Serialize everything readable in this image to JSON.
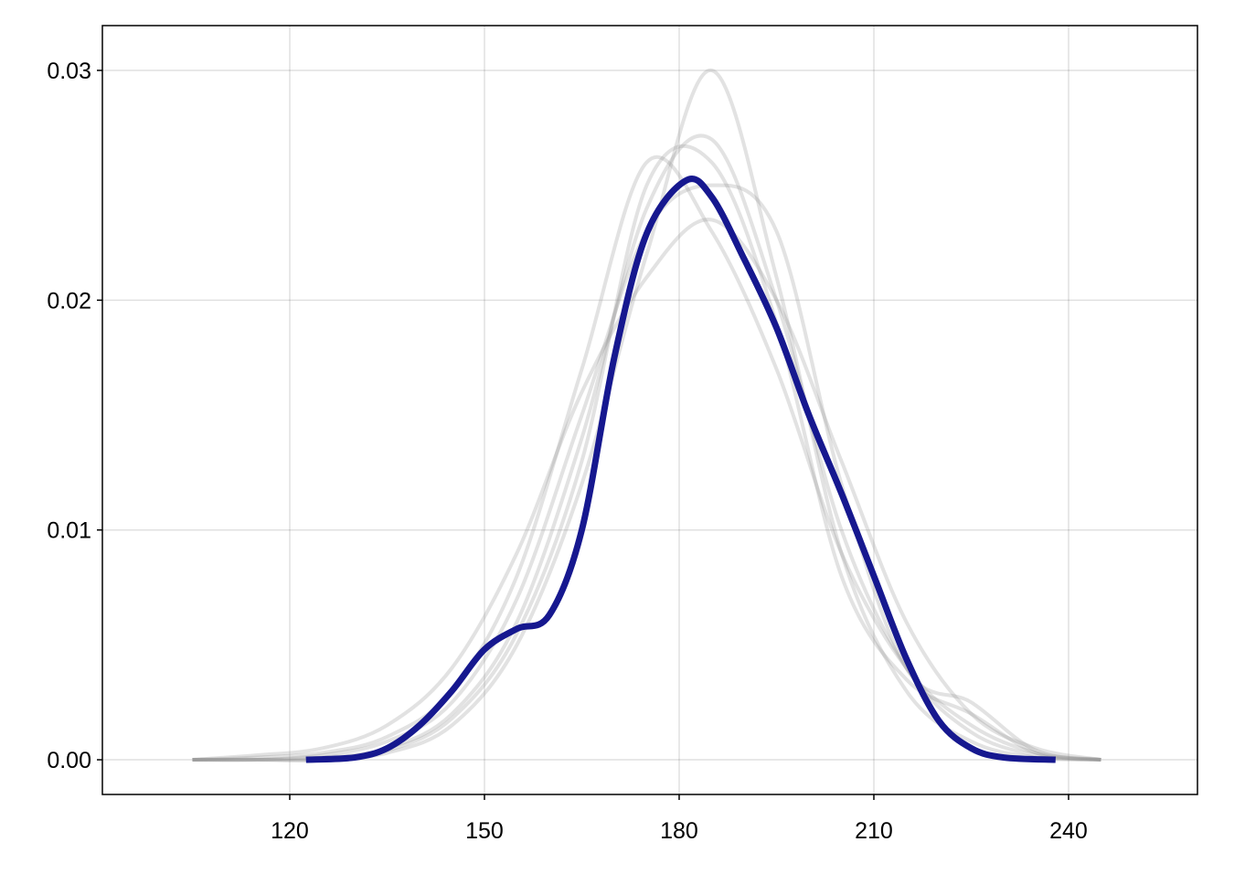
{
  "chart_data": {
    "type": "line",
    "xlim": [
      91.13,
      259.86
    ],
    "ylim": [
      -0.00151,
      0.03195
    ],
    "xticks": [
      120,
      150,
      180,
      210,
      240
    ],
    "yticks": [
      {
        "value": 0,
        "label": "0.00"
      },
      0.01,
      0.02,
      0.03
    ],
    "grid": true,
    "series": [
      {
        "color": "rgba(140,140,140,0.25)",
        "x": [
          105,
          115,
          125,
          135,
          145,
          155,
          165,
          175,
          185,
          195,
          205,
          215,
          225,
          235,
          245
        ],
        "values": [
          0,
          0,
          0,
          0.0003,
          0.0015,
          0.005,
          0.012,
          0.022,
          0.03,
          0.021,
          0.009,
          0.003,
          0.0008,
          0.0001,
          0
        ]
      },
      {
        "color": "rgba(140,140,140,0.25)",
        "x": [
          105,
          115,
          125,
          135,
          145,
          155,
          165,
          175,
          185,
          195,
          205,
          215,
          225,
          235,
          245
        ],
        "values": [
          0,
          0.0001,
          0.0003,
          0.001,
          0.003,
          0.008,
          0.017,
          0.026,
          0.023,
          0.017,
          0.009,
          0.004,
          0.0015,
          0.0003,
          0
        ]
      },
      {
        "color": "rgba(140,140,140,0.25)",
        "x": [
          105,
          115,
          125,
          135,
          145,
          155,
          165,
          175,
          185,
          195,
          205,
          215,
          225,
          235,
          245
        ],
        "values": [
          0,
          0.0002,
          0.0005,
          0.0015,
          0.004,
          0.009,
          0.016,
          0.021,
          0.0235,
          0.02,
          0.013,
          0.006,
          0.002,
          0.0005,
          0
        ]
      },
      {
        "color": "rgba(140,140,140,0.25)",
        "x": [
          105,
          115,
          125,
          135,
          145,
          155,
          165,
          175,
          185,
          195,
          205,
          215,
          225,
          235,
          245
        ],
        "values": [
          0,
          0,
          0.0001,
          0.0005,
          0.002,
          0.006,
          0.014,
          0.024,
          0.027,
          0.02,
          0.01,
          0.004,
          0.0012,
          0.0002,
          0
        ]
      },
      {
        "color": "rgba(140,140,140,0.25)",
        "x": [
          105,
          115,
          125,
          135,
          145,
          155,
          165,
          175,
          185,
          195,
          205,
          215,
          225,
          235,
          245
        ],
        "values": [
          0,
          0,
          0.0002,
          0.0008,
          0.0025,
          0.007,
          0.015,
          0.023,
          0.025,
          0.023,
          0.012,
          0.004,
          0.0025,
          0.0004,
          0
        ]
      },
      {
        "color": "rgba(140,140,140,0.25)",
        "x": [
          105,
          115,
          125,
          135,
          145,
          155,
          165,
          175,
          185,
          195,
          205,
          215,
          225,
          235,
          245
        ],
        "values": [
          0,
          0,
          0,
          0.0004,
          0.0018,
          0.0055,
          0.013,
          0.025,
          0.026,
          0.019,
          0.008,
          0.0035,
          0.002,
          0.0003,
          0
        ]
      },
      {
        "color": "#16188f",
        "x": [
          122.5,
          130,
          135,
          140,
          145,
          150,
          155,
          160,
          165,
          170,
          175,
          181,
          185,
          190,
          195,
          200,
          205,
          210,
          215,
          220,
          225,
          230,
          238
        ],
        "values": [
          0,
          0.0001,
          0.0005,
          0.0015,
          0.003,
          0.0048,
          0.0057,
          0.0063,
          0.01,
          0.0175,
          0.0229,
          0.0252,
          0.0245,
          0.0218,
          0.0188,
          0.015,
          0.0116,
          0.008,
          0.0044,
          0.0017,
          0.0005,
          0.0001,
          0
        ]
      }
    ]
  }
}
